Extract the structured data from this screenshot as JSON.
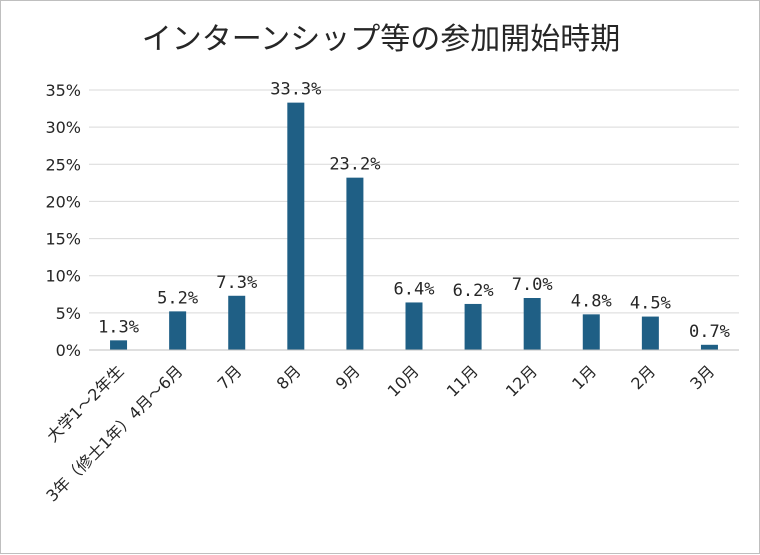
{
  "chart_data": {
    "type": "bar",
    "title": "インターンシップ等の参加開始時期",
    "xlabel": "",
    "ylabel": "",
    "ylim": [
      0,
      35
    ],
    "yticks": [
      "0%",
      "5%",
      "10%",
      "15%",
      "20%",
      "25%",
      "30%",
      "35%"
    ],
    "grid": true,
    "legend": "none",
    "bar_color": "#1f5f85",
    "categories": [
      "大学1～2年生",
      "3年（修士1年）4月～6月",
      "7月",
      "8月",
      "9月",
      "10月",
      "11月",
      "12月",
      "1月",
      "2月",
      "3月"
    ],
    "values": [
      1.3,
      5.2,
      7.3,
      33.3,
      23.2,
      6.4,
      6.2,
      7.0,
      4.8,
      4.5,
      0.7
    ],
    "data_labels": [
      "1.3%",
      "5.2%",
      "7.3%",
      "33.3%",
      "23.2%",
      "6.4%",
      "6.2%",
      "7.0%",
      "4.8%",
      "4.5%",
      "0.7%"
    ]
  }
}
